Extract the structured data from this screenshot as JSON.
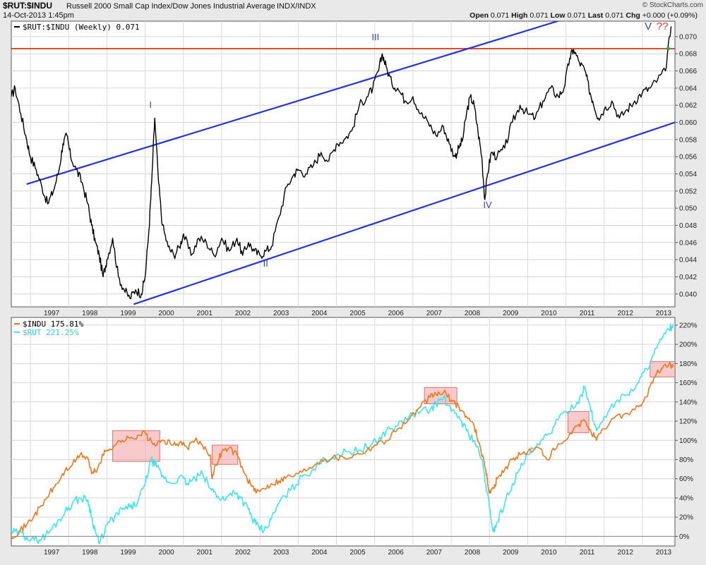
{
  "header": {
    "symbol": "$RUT:$INDU",
    "title": "Russell 2000 Small Cap Index/Dow Jones Industrial Average",
    "exchange": "INDX/INDX",
    "date": "14-Oct-2013 1:45pm",
    "brand": "© StockCharts.com",
    "open_label": "Open",
    "open_value": "0.071",
    "high_label": "High",
    "high_value": "0.071",
    "low_label": "Low",
    "low_value": "0.071",
    "last_label": "Last",
    "last_value": "0.071",
    "chg_label": "Chg",
    "chg_value": "+0.000 (+0.09%)"
  },
  "colors": {
    "ratio": "#000000",
    "channel": "#2233dd",
    "resistance": "#dd2200",
    "indu": "#f07820",
    "rut": "#33e6f0",
    "highlight": "#f0a0a0",
    "wave_label": "#3344bb",
    "question": "#ee3333"
  },
  "x_axis": {
    "start": 1996.5,
    "end": 2013.85,
    "tick_labels": [
      "1997",
      "1998",
      "1999",
      "2000",
      "2001",
      "2002",
      "2003",
      "2004",
      "2005",
      "2006",
      "2007",
      "2008",
      "2009",
      "2010",
      "2011",
      "2012",
      "2013"
    ]
  },
  "chart_data": [
    {
      "type": "line",
      "legend": "$RUT:$INDU (Weekly) 0.071",
      "ylim": [
        0.0385,
        0.0718
      ],
      "y_ticks": [
        0.04,
        0.042,
        0.044,
        0.046,
        0.048,
        0.05,
        0.052,
        0.054,
        0.056,
        0.058,
        0.06,
        0.062,
        0.064,
        0.066,
        0.068,
        0.07
      ],
      "y_tick_labels": [
        "0.040",
        "0.042",
        "0.044",
        "0.046",
        "0.048",
        "0.050",
        "0.052",
        "0.054",
        "0.056",
        "0.058",
        "0.060",
        "0.062",
        "0.064",
        "0.066",
        "0.068",
        "0.070"
      ],
      "series": [
        {
          "x": [
            1996.5,
            1996.6,
            1996.75,
            1996.9,
            1997.0,
            1997.15,
            1997.3,
            1997.45,
            1997.6,
            1997.75,
            1997.85,
            1997.95,
            1998.05,
            1998.2,
            1998.35,
            1998.5,
            1998.6,
            1998.7,
            1998.8,
            1998.9,
            1999.0,
            1999.15,
            1999.3,
            1999.45,
            1999.6,
            1999.75,
            1999.9,
            2000.0,
            2000.1,
            2000.17,
            2000.25,
            2000.35,
            2000.45,
            2000.6,
            2000.75,
            2000.9,
            2001.0,
            2001.2,
            2001.4,
            2001.6,
            2001.8,
            2002.0,
            2002.2,
            2002.4,
            2002.55,
            2002.7,
            2002.85,
            2003.0,
            2003.15,
            2003.3,
            2003.5,
            2003.7,
            2003.9,
            2004.0,
            2004.2,
            2004.4,
            2004.6,
            2004.8,
            2005.0,
            2005.2,
            2005.4,
            2005.6,
            2005.8,
            2005.95,
            2006.1,
            2006.2,
            2006.3,
            2006.45,
            2006.6,
            2006.8,
            2007.0,
            2007.2,
            2007.4,
            2007.6,
            2007.8,
            2007.95,
            2008.1,
            2008.2,
            2008.3,
            2008.4,
            2008.5,
            2008.6,
            2008.7,
            2008.8,
            2008.88,
            2008.95,
            2009.05,
            2009.2,
            2009.4,
            2009.6,
            2009.8,
            2010.0,
            2010.2,
            2010.4,
            2010.6,
            2010.8,
            2010.95,
            2011.1,
            2011.2,
            2011.35,
            2011.5,
            2011.6,
            2011.7,
            2011.85,
            2012.0,
            2012.2,
            2012.4,
            2012.6,
            2012.8,
            2013.0,
            2013.2,
            2013.4,
            2013.6,
            2013.75
          ],
          "y": [
            0.063,
            0.064,
            0.061,
            0.058,
            0.056,
            0.0545,
            0.0525,
            0.0505,
            0.052,
            0.0545,
            0.0575,
            0.0585,
            0.056,
            0.0545,
            0.053,
            0.0505,
            0.048,
            0.046,
            0.0445,
            0.042,
            0.044,
            0.0465,
            0.042,
            0.0405,
            0.0395,
            0.0405,
            0.04,
            0.042,
            0.0475,
            0.053,
            0.0605,
            0.053,
            0.048,
            0.0455,
            0.0445,
            0.0455,
            0.047,
            0.0445,
            0.0465,
            0.046,
            0.0445,
            0.0465,
            0.045,
            0.0465,
            0.0445,
            0.046,
            0.045,
            0.0445,
            0.045,
            0.0455,
            0.049,
            0.0525,
            0.054,
            0.0545,
            0.054,
            0.055,
            0.0565,
            0.0555,
            0.0575,
            0.058,
            0.059,
            0.062,
            0.063,
            0.064,
            0.066,
            0.068,
            0.0665,
            0.0645,
            0.064,
            0.0625,
            0.063,
            0.061,
            0.06,
            0.0585,
            0.0595,
            0.0575,
            0.056,
            0.057,
            0.058,
            0.061,
            0.063,
            0.062,
            0.059,
            0.056,
            0.051,
            0.054,
            0.0565,
            0.056,
            0.057,
            0.06,
            0.062,
            0.061,
            0.0605,
            0.0625,
            0.064,
            0.063,
            0.064,
            0.0675,
            0.0685,
            0.067,
            0.066,
            0.064,
            0.0625,
            0.0605,
            0.0615,
            0.0625,
            0.0605,
            0.0615,
            0.0625,
            0.0635,
            0.064,
            0.065,
            0.066,
            0.0712
          ]
        }
      ],
      "annotations": [
        {
          "kind": "resistance",
          "y": 0.0686
        },
        {
          "kind": "channel",
          "x": [
            1996.9,
            2013.85
          ],
          "y": [
            0.0528,
            0.076
          ]
        },
        {
          "kind": "channel",
          "x": [
            1999.7,
            2013.85
          ],
          "y": [
            0.0388,
            0.06
          ]
        },
        {
          "kind": "label",
          "text": "I",
          "x": 2000.14,
          "y": 0.0617
        },
        {
          "kind": "label",
          "text": "II",
          "x": 2003.15,
          "y": 0.0432
        },
        {
          "kind": "label",
          "text": "III",
          "x": 2006.02,
          "y": 0.0696
        },
        {
          "kind": "label",
          "text": "IV",
          "x": 2008.95,
          "y": 0.05
        },
        {
          "kind": "label",
          "text": "V",
          "x": 2013.15,
          "y": 0.0708
        },
        {
          "kind": "label",
          "text": "??",
          "x": 2013.52,
          "y": 0.0708
        }
      ]
    },
    {
      "type": "line",
      "ylim": [
        -10,
        228
      ],
      "y_ticks": [
        0,
        20,
        40,
        60,
        80,
        100,
        120,
        140,
        160,
        180,
        200,
        220
      ],
      "y_tick_labels": [
        "0%",
        "20%",
        "40%",
        "60%",
        "80%",
        "100%",
        "120%",
        "140%",
        "160%",
        "180%",
        "200%",
        "220%"
      ],
      "series": [
        {
          "legend": "$INDU 175.81%",
          "x": [
            1996.5,
            1996.7,
            1996.9,
            1997.1,
            1997.3,
            1997.5,
            1997.7,
            1997.9,
            1998.1,
            1998.3,
            1998.5,
            1998.6,
            1998.75,
            1998.9,
            1999.0,
            1999.2,
            1999.4,
            1999.6,
            1999.8,
            2000.0,
            2000.1,
            2000.3,
            2000.5,
            2000.7,
            2000.9,
            2001.1,
            2001.3,
            2001.5,
            2001.7,
            2001.75,
            2001.85,
            2002.0,
            2002.2,
            2002.4,
            2002.6,
            2002.75,
            2002.9,
            2003.1,
            2003.3,
            2003.5,
            2003.7,
            2004.0,
            2004.3,
            2004.6,
            2004.9,
            2005.2,
            2005.5,
            2005.8,
            2006.0,
            2006.3,
            2006.6,
            2006.9,
            2007.2,
            2007.45,
            2007.6,
            2007.8,
            2008.0,
            2008.2,
            2008.4,
            2008.6,
            2008.75,
            2008.9,
            2009.0,
            2009.1,
            2009.2,
            2009.4,
            2009.6,
            2009.8,
            2010.0,
            2010.3,
            2010.5,
            2010.7,
            2011.0,
            2011.3,
            2011.5,
            2011.65,
            2011.8,
            2012.0,
            2012.3,
            2012.6,
            2012.9,
            2013.1,
            2013.3,
            2013.5,
            2013.7,
            2013.8
          ],
          "y": [
            0,
            5,
            12,
            22,
            32,
            45,
            55,
            68,
            75,
            85,
            82,
            65,
            70,
            85,
            90,
            95,
            100,
            102,
            105,
            108,
            100,
            95,
            100,
            95,
            98,
            92,
            100,
            95,
            85,
            60,
            75,
            88,
            92,
            85,
            65,
            55,
            45,
            50,
            55,
            58,
            62,
            65,
            72,
            80,
            82,
            82,
            85,
            90,
            95,
            100,
            112,
            122,
            135,
            145,
            148,
            150,
            142,
            135,
            125,
            115,
            95,
            70,
            45,
            50,
            60,
            70,
            80,
            85,
            88,
            92,
            80,
            90,
            100,
            115,
            120,
            110,
            100,
            112,
            125,
            128,
            135,
            145,
            165,
            175,
            180,
            176
          ]
        },
        {
          "legend": "$RUT 221.25%",
          "x": [
            1996.5,
            1996.7,
            1996.9,
            1997.1,
            1997.3,
            1997.5,
            1997.7,
            1997.9,
            1998.1,
            1998.3,
            1998.5,
            1998.6,
            1998.7,
            1998.8,
            1999.0,
            1999.2,
            1999.4,
            1999.6,
            1999.8,
            2000.0,
            2000.15,
            2000.3,
            2000.5,
            2000.7,
            2000.9,
            2001.1,
            2001.3,
            2001.5,
            2001.7,
            2001.9,
            2002.1,
            2002.3,
            2002.5,
            2002.7,
            2002.8,
            2002.9,
            2003.1,
            2003.3,
            2003.5,
            2003.8,
            2004.1,
            2004.4,
            2004.7,
            2005.0,
            2005.3,
            2005.6,
            2005.9,
            2006.1,
            2006.3,
            2006.6,
            2006.9,
            2007.2,
            2007.45,
            2007.6,
            2007.8,
            2008.0,
            2008.2,
            2008.4,
            2008.6,
            2008.8,
            2008.9,
            2009.0,
            2009.1,
            2009.2,
            2009.4,
            2009.6,
            2009.8,
            2010.0,
            2010.3,
            2010.5,
            2010.7,
            2011.0,
            2011.3,
            2011.5,
            2011.65,
            2011.8,
            2012.0,
            2012.3,
            2012.6,
            2012.9,
            2013.1,
            2013.3,
            2013.5,
            2013.7,
            2013.8
          ],
          "y": [
            5,
            3,
            0,
            -4,
            -2,
            5,
            15,
            25,
            35,
            40,
            38,
            20,
            5,
            -8,
            12,
            20,
            28,
            30,
            35,
            55,
            80,
            72,
            60,
            55,
            62,
            55,
            60,
            65,
            50,
            42,
            38,
            48,
            40,
            28,
            18,
            12,
            5,
            18,
            35,
            48,
            62,
            70,
            80,
            85,
            88,
            90,
            95,
            100,
            110,
            115,
            125,
            130,
            132,
            138,
            145,
            130,
            125,
            110,
            100,
            80,
            55,
            30,
            5,
            15,
            35,
            55,
            70,
            85,
            95,
            105,
            115,
            130,
            140,
            155,
            130,
            110,
            125,
            140,
            148,
            160,
            175,
            190,
            205,
            215,
            221
          ]
        }
      ],
      "highlights": [
        {
          "x": [
            1999.15,
            2000.38
          ],
          "y": [
            78,
            110
          ]
        },
        {
          "x": [
            2001.75,
            2002.42
          ],
          "y": [
            75,
            95
          ]
        },
        {
          "x": [
            2007.3,
            2008.15
          ],
          "y": [
            138,
            155
          ]
        },
        {
          "x": [
            2011.05,
            2011.6
          ],
          "y": [
            108,
            130
          ]
        },
        {
          "x": [
            2013.2,
            2013.85
          ],
          "y": [
            166,
            182
          ]
        }
      ]
    }
  ]
}
